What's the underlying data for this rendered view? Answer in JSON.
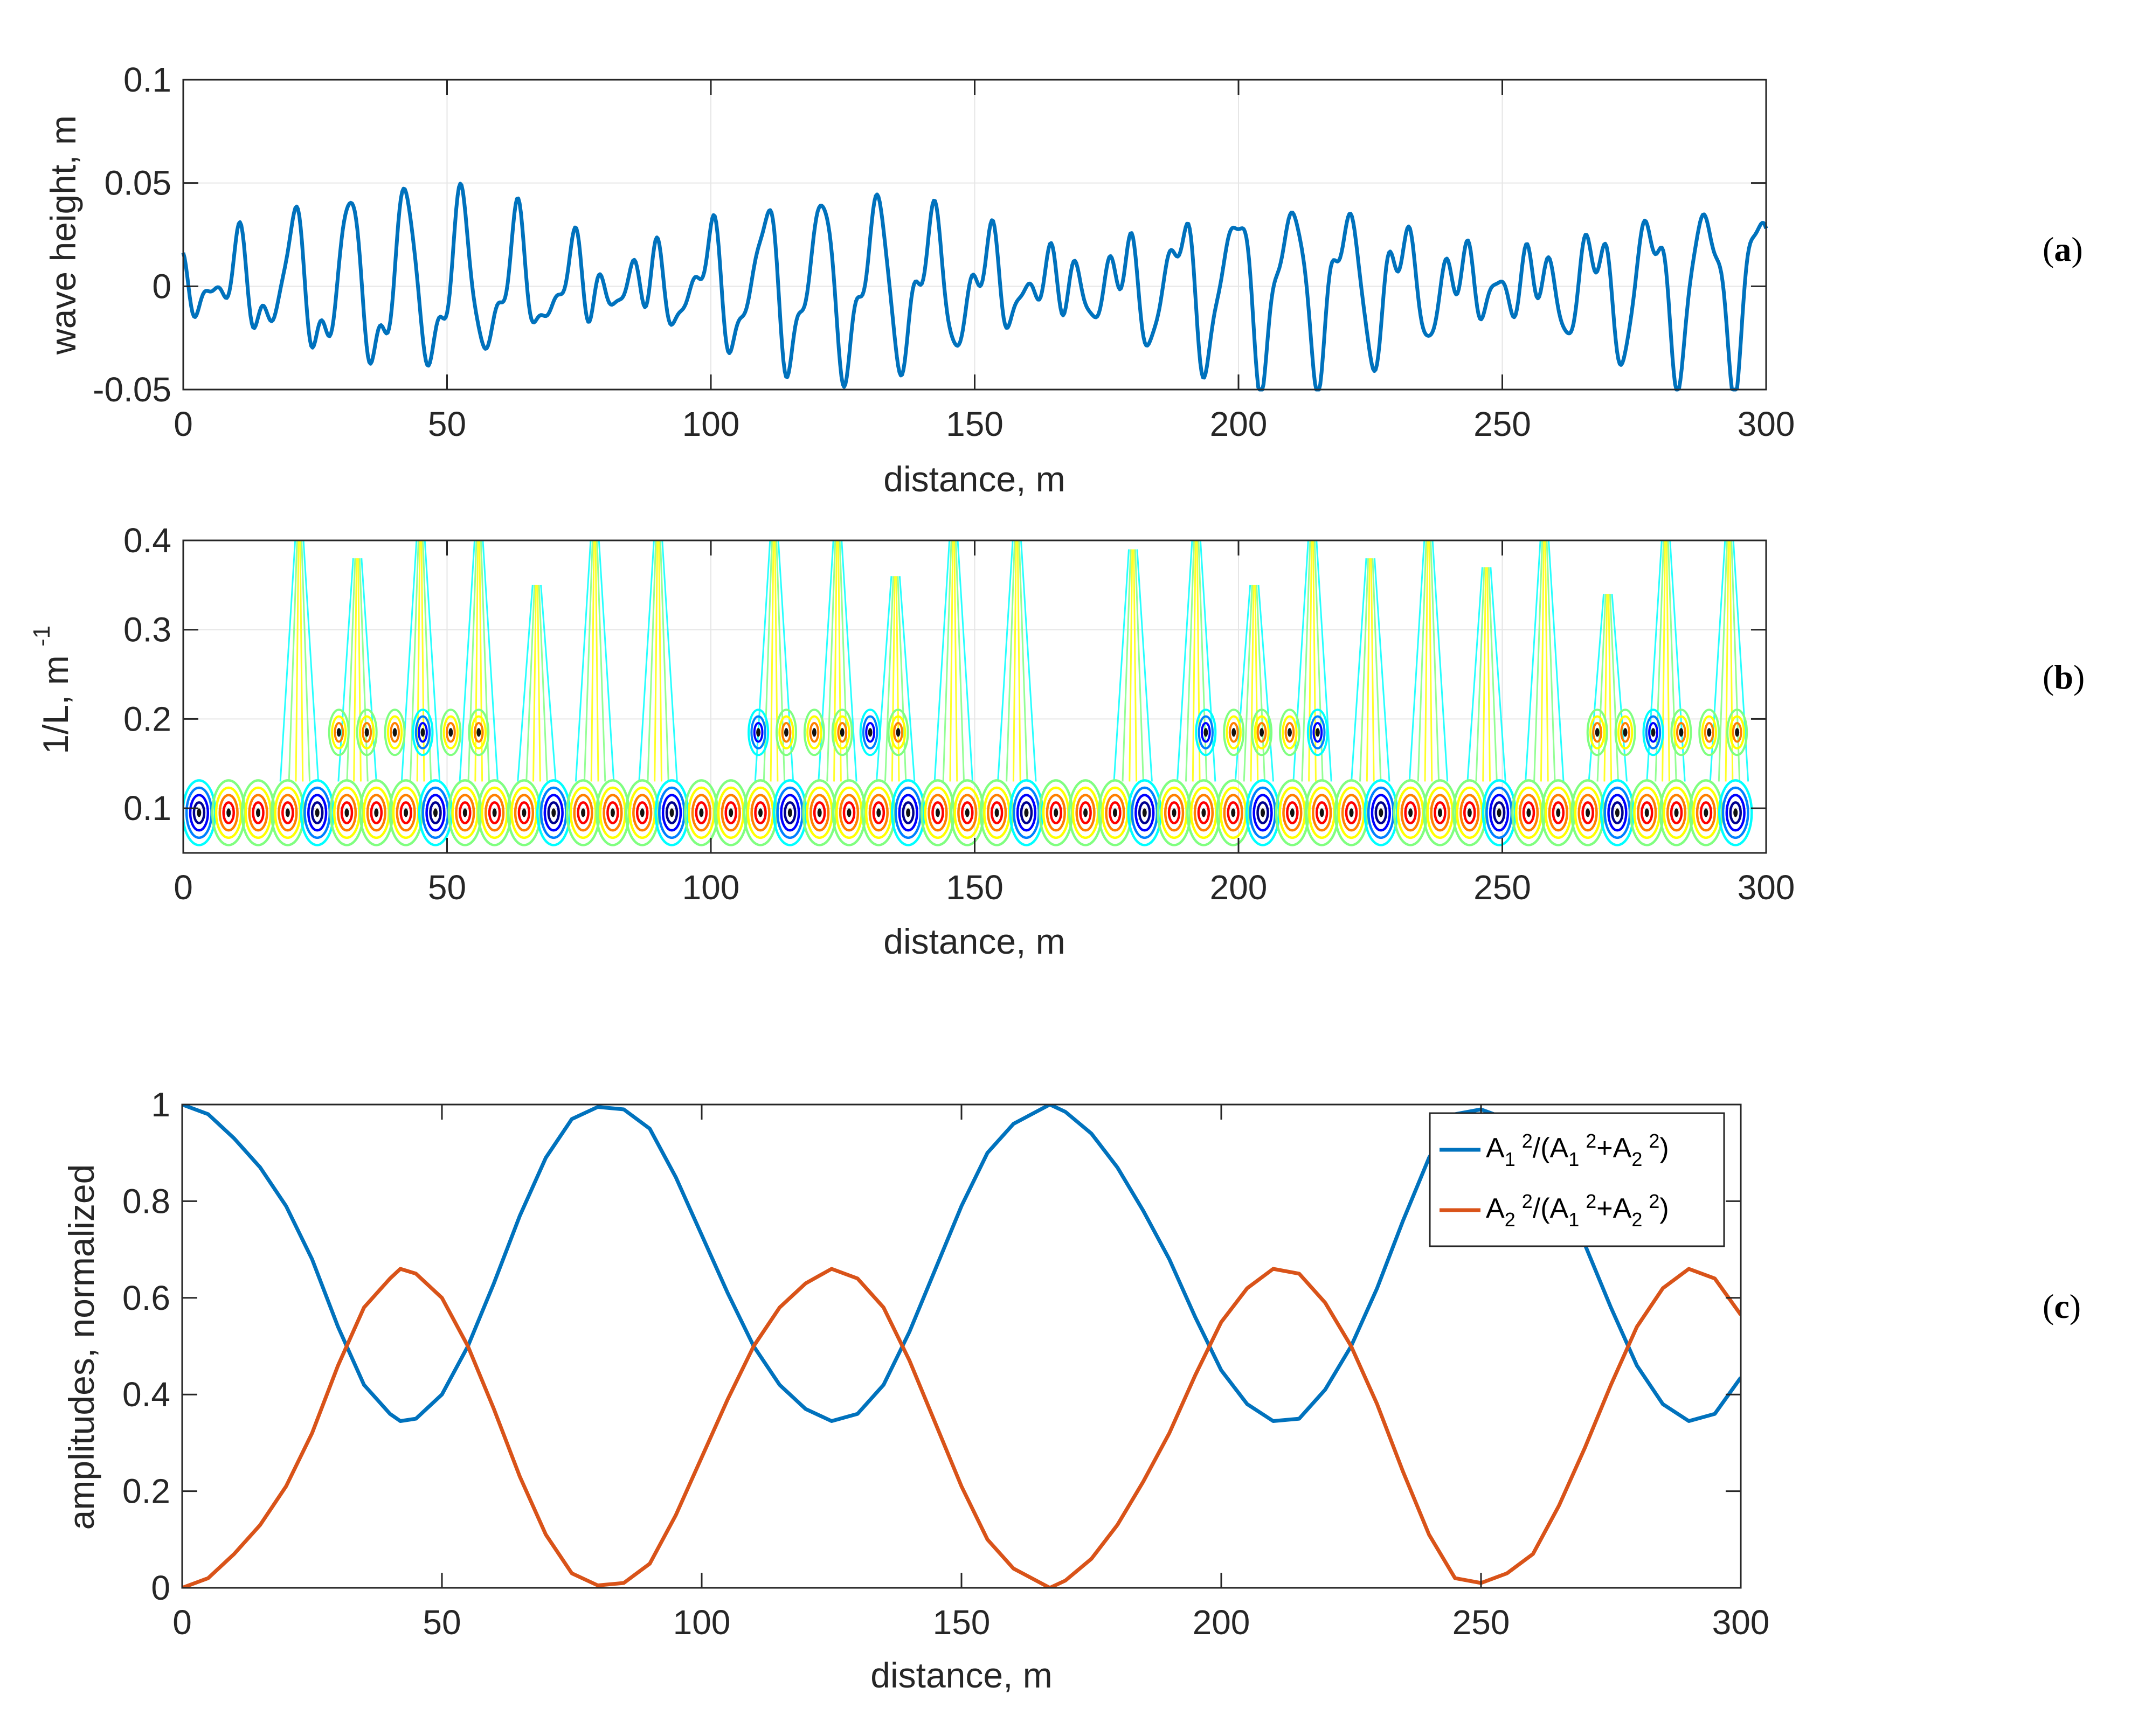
{
  "figure_labels": {
    "a": "(a)",
    "b": "(b)",
    "c": "(c)"
  },
  "colors": {
    "blue": "#0072BD",
    "orange": "#D95319",
    "axis": "#262626",
    "jet": [
      "#00008f",
      "#0000ff",
      "#0080ff",
      "#00ffff",
      "#80ff80",
      "#ffff00",
      "#ff8000",
      "#ff0000",
      "#800000"
    ]
  },
  "chart_data": [
    {
      "id": "a",
      "type": "line",
      "xlabel": "distance, m",
      "ylabel": "wave height, m",
      "xlim": [
        0,
        300
      ],
      "ylim": [
        -0.05,
        0.1
      ],
      "xticks": [
        0,
        50,
        100,
        150,
        200,
        250,
        300
      ],
      "yticks": [
        -0.05,
        0,
        0.05,
        0.1
      ],
      "xtick_labels": [
        "0",
        "50",
        "100",
        "150",
        "200",
        "250",
        "300"
      ],
      "ytick_labels": [
        "-0.05",
        "0",
        "0.05",
        "0.1"
      ],
      "series": [
        {
          "name": "wave height",
          "color": "#0072BD",
          "model": {
            "components": [
              {
                "amplitude": 0.021,
                "wavenumber_per_m": 0.0893,
                "phase_deg": 90
              },
              {
                "amplitude": 0.0175,
                "wavenumber_per_m": 0.1013,
                "phase_deg": -90
              },
              {
                "amplitude": 0.011,
                "wavenumber_per_m": 0.1887,
                "phase_deg": 0
              },
              {
                "amplitude": 0.006,
                "wavenumber_per_m": 0.2667,
                "phase_deg": 30
              }
            ],
            "x_step": 0.25
          }
        }
      ]
    },
    {
      "id": "b",
      "type": "heatmap",
      "subtype": "contour",
      "xlabel": "distance, m",
      "ylabel": "1/L, m",
      "ylabel_superscript": "-1",
      "xlim": [
        0,
        300
      ],
      "ylim": [
        0.05,
        0.4
      ],
      "xticks": [
        0,
        50,
        100,
        150,
        200,
        250,
        300
      ],
      "yticks": [
        0.1,
        0.2,
        0.3,
        0.4
      ],
      "xtick_labels": [
        "0",
        "50",
        "100",
        "150",
        "200",
        "250",
        "300"
      ],
      "ytick_labels": [
        "0.1",
        "0.2",
        "0.3",
        "0.4"
      ],
      "bands": [
        {
          "center_per_m": 0.095,
          "period_m": 5.6,
          "ring_levels": 4,
          "envelope": "strong"
        },
        {
          "center_per_m": 0.185,
          "period_m": 5.3,
          "ring_levels": 3,
          "active_ranges_m": [
            [
              28,
              58
            ],
            [
              108,
              140
            ],
            [
              190,
              220
            ],
            [
              265,
              295
            ]
          ]
        }
      ],
      "plumes": {
        "x_m": [
          22,
          33,
          45,
          56,
          67,
          78,
          90,
          112,
          124,
          135,
          146,
          158,
          180,
          192,
          203,
          214,
          225,
          236,
          247,
          258,
          270,
          281,
          293
        ],
        "top_per_m": [
          0.4,
          0.38,
          0.4,
          0.4,
          0.35,
          0.4,
          0.4,
          0.4,
          0.4,
          0.36,
          0.4,
          0.4,
          0.39,
          0.4,
          0.35,
          0.4,
          0.38,
          0.4,
          0.37,
          0.4,
          0.34,
          0.4,
          0.4
        ]
      }
    },
    {
      "id": "c",
      "type": "line",
      "xlabel": "distance, m",
      "ylabel": "amplitudes, normalized",
      "xlim": [
        0,
        300
      ],
      "ylim": [
        0,
        1
      ],
      "xticks": [
        0,
        50,
        100,
        150,
        200,
        250,
        300
      ],
      "yticks": [
        0,
        0.2,
        0.4,
        0.6,
        0.8,
        1
      ],
      "xtick_labels": [
        "0",
        "50",
        "100",
        "150",
        "200",
        "250",
        "300"
      ],
      "ytick_labels": [
        "0",
        "0.2",
        "0.4",
        "0.6",
        "0.8",
        "1"
      ],
      "legend_position": "top-right",
      "series": [
        {
          "name": "A1^2/(A1^2+A2^2)",
          "legend_parts": [
            "A",
            "1",
            "2",
            "/(A",
            "1",
            "2",
            "+A",
            "2",
            "2",
            ")"
          ],
          "color": "#0072BD",
          "x": [
            0,
            5,
            10,
            15,
            20,
            25,
            30,
            35,
            40,
            42,
            45,
            50,
            55,
            60,
            65,
            70,
            75,
            80,
            85,
            90,
            95,
            100,
            105,
            110,
            115,
            120,
            125,
            130,
            135,
            140,
            145,
            150,
            155,
            160,
            167,
            170,
            175,
            180,
            185,
            190,
            195,
            200,
            205,
            210,
            215,
            220,
            225,
            230,
            235,
            240,
            245,
            250,
            255,
            260,
            265,
            270,
            275,
            280,
            285,
            290,
            295,
            300
          ],
          "y": [
            1.0,
            0.98,
            0.93,
            0.87,
            0.79,
            0.68,
            0.54,
            0.42,
            0.36,
            0.345,
            0.35,
            0.4,
            0.5,
            0.63,
            0.77,
            0.89,
            0.97,
            0.995,
            0.99,
            0.95,
            0.85,
            0.73,
            0.61,
            0.5,
            0.42,
            0.37,
            0.345,
            0.36,
            0.42,
            0.53,
            0.66,
            0.79,
            0.9,
            0.96,
            1.0,
            0.985,
            0.94,
            0.87,
            0.78,
            0.68,
            0.56,
            0.45,
            0.38,
            0.345,
            0.35,
            0.41,
            0.5,
            0.62,
            0.76,
            0.89,
            0.98,
            0.99,
            0.97,
            0.93,
            0.83,
            0.71,
            0.58,
            0.46,
            0.38,
            0.345,
            0.36,
            0.435
          ]
        },
        {
          "name": "A2^2/(A1^2+A2^2)",
          "legend_parts": [
            "A",
            "2",
            "2",
            "/(A",
            "1",
            "2",
            "+A",
            "2",
            "2",
            ")"
          ],
          "color": "#D95319",
          "x": [
            0,
            5,
            10,
            15,
            20,
            25,
            30,
            35,
            40,
            42,
            45,
            50,
            55,
            60,
            65,
            70,
            75,
            80,
            85,
            90,
            95,
            100,
            105,
            110,
            115,
            120,
            125,
            130,
            135,
            140,
            145,
            150,
            155,
            160,
            167,
            170,
            175,
            180,
            185,
            190,
            195,
            200,
            205,
            210,
            215,
            220,
            225,
            230,
            235,
            240,
            245,
            250,
            255,
            260,
            265,
            270,
            275,
            280,
            285,
            290,
            295,
            300
          ],
          "y": [
            0.0,
            0.02,
            0.07,
            0.13,
            0.21,
            0.32,
            0.46,
            0.58,
            0.64,
            0.66,
            0.65,
            0.6,
            0.5,
            0.37,
            0.23,
            0.11,
            0.03,
            0.005,
            0.01,
            0.05,
            0.15,
            0.27,
            0.39,
            0.5,
            0.58,
            0.63,
            0.66,
            0.64,
            0.58,
            0.47,
            0.34,
            0.21,
            0.1,
            0.04,
            0.0,
            0.015,
            0.06,
            0.13,
            0.22,
            0.32,
            0.44,
            0.55,
            0.62,
            0.66,
            0.65,
            0.59,
            0.5,
            0.38,
            0.24,
            0.11,
            0.02,
            0.01,
            0.03,
            0.07,
            0.17,
            0.29,
            0.42,
            0.54,
            0.62,
            0.66,
            0.64,
            0.565
          ]
        }
      ]
    }
  ]
}
